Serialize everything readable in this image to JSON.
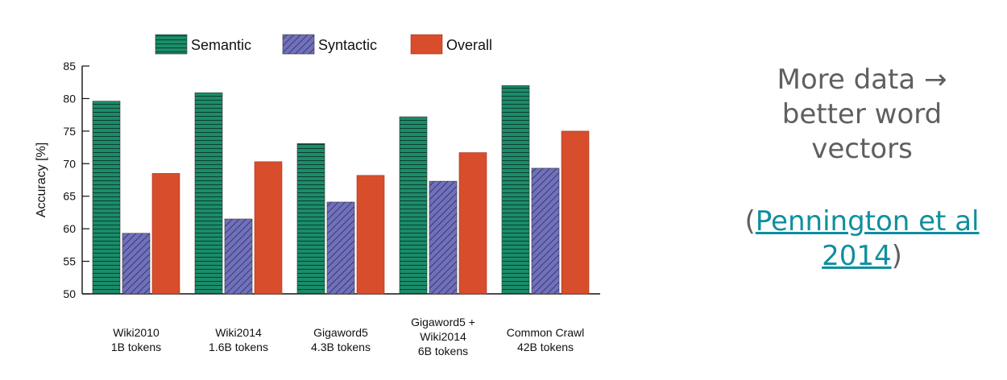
{
  "chart_data": {
    "type": "bar",
    "ylabel": "Accuracy [%]",
    "ylim": [
      50,
      85
    ],
    "yticks": [
      50,
      55,
      60,
      65,
      70,
      75,
      80,
      85
    ],
    "legend_position": "top",
    "grid": false,
    "categories": [
      [
        "Wiki2010",
        "1B tokens"
      ],
      [
        "Wiki2014",
        "1.6B tokens"
      ],
      [
        "Gigaword5",
        "4.3B tokens"
      ],
      [
        "Gigaword5 +",
        "Wiki2014",
        "6B tokens"
      ],
      [
        "Common Crawl",
        "42B tokens"
      ]
    ],
    "series": [
      {
        "name": "Semantic",
        "values": [
          79.6,
          80.9,
          73.1,
          77.2,
          82.0
        ],
        "color": "#1a8c6a",
        "pattern": "horizontal-stripes"
      },
      {
        "name": "Syntactic",
        "values": [
          59.3,
          61.5,
          64.1,
          67.3,
          69.3
        ],
        "color": "#6a6ab4",
        "pattern": "diagonal-hatch"
      },
      {
        "name": "Overall",
        "values": [
          68.5,
          70.3,
          68.2,
          71.7,
          75.0
        ],
        "color": "#d84d2c",
        "pattern": "solid"
      }
    ]
  },
  "side": {
    "lines": [
      "More data →",
      "better word",
      "vectors"
    ],
    "citation_open": "(",
    "citation_link_line1": "Pennington et al",
    "citation_link_line2": "2014",
    "citation_close": ")"
  }
}
